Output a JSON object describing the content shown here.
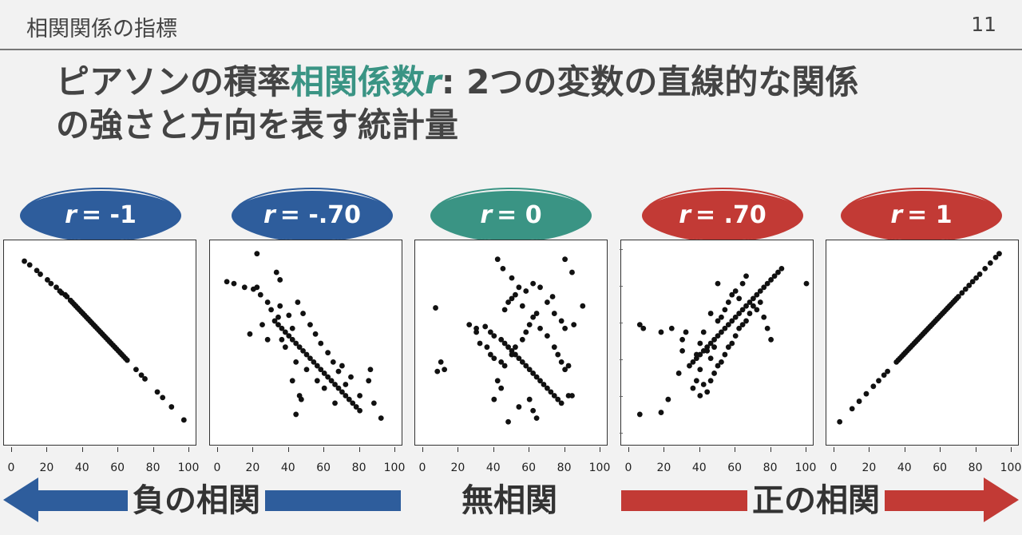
{
  "header": {
    "title": "相関関係の指標",
    "page_number": "11"
  },
  "headline": {
    "part1": "ピアソンの積率",
    "highlight": "相関係数",
    "variable": "r",
    "part2": ": 2つの変数の直線的な関係",
    "line2": "の強さと方向を表す統計量"
  },
  "colors": {
    "negative": "#2e5d9c",
    "zero": "#3a9484",
    "positive": "#c23a35",
    "text": "#444444"
  },
  "badges": [
    {
      "var": "r",
      "value": "= -1",
      "color": "#2e5d9c"
    },
    {
      "var": "r",
      "value": "= -.70",
      "color": "#2e5d9c"
    },
    {
      "var": "r",
      "value": "= 0",
      "color": "#3a9484"
    },
    {
      "var": "r",
      "value": "= .70",
      "color": "#c23a35"
    },
    {
      "var": "r",
      "value": "= 1",
      "color": "#c23a35"
    }
  ],
  "x_ticks": [
    "0",
    "20",
    "40",
    "60",
    "80",
    "100"
  ],
  "bottom": {
    "negative": "負の相関",
    "none": "無相関",
    "positive": "正の相関"
  },
  "chart_data": [
    {
      "type": "scatter",
      "r": -1,
      "xlim": [
        0,
        100
      ],
      "points": [
        [
          7,
          94
        ],
        [
          10,
          92
        ],
        [
          14,
          89
        ],
        [
          16,
          87
        ],
        [
          20,
          84
        ],
        [
          22,
          82
        ],
        [
          25,
          80
        ],
        [
          27,
          78
        ],
        [
          28,
          77
        ],
        [
          30,
          76
        ],
        [
          31,
          75
        ],
        [
          33,
          73
        ],
        [
          34,
          72
        ],
        [
          35,
          71
        ],
        [
          36,
          70
        ],
        [
          37,
          69
        ],
        [
          38,
          68
        ],
        [
          39,
          67
        ],
        [
          40,
          66
        ],
        [
          41,
          65
        ],
        [
          42,
          64
        ],
        [
          43,
          63
        ],
        [
          44,
          62
        ],
        [
          45,
          61
        ],
        [
          46,
          60
        ],
        [
          47,
          59
        ],
        [
          48,
          58
        ],
        [
          49,
          57
        ],
        [
          50,
          56
        ],
        [
          51,
          55
        ],
        [
          52,
          54
        ],
        [
          53,
          53
        ],
        [
          54,
          52
        ],
        [
          55,
          51
        ],
        [
          56,
          50
        ],
        [
          57,
          49
        ],
        [
          58,
          48
        ],
        [
          59,
          47
        ],
        [
          60,
          46
        ],
        [
          61,
          45
        ],
        [
          62,
          44
        ],
        [
          63,
          43
        ],
        [
          64,
          42
        ],
        [
          65,
          41
        ],
        [
          70,
          36
        ],
        [
          73,
          33
        ],
        [
          75,
          31
        ],
        [
          82,
          24
        ],
        [
          85,
          21
        ],
        [
          90,
          16
        ],
        [
          97,
          9
        ]
      ]
    },
    {
      "type": "scatter",
      "r": -0.7,
      "xlim": [
        0,
        100
      ],
      "points": [
        [
          22,
          98
        ],
        [
          5,
          83
        ],
        [
          9,
          82
        ],
        [
          15,
          80
        ],
        [
          20,
          79
        ],
        [
          22,
          80
        ],
        [
          24,
          76
        ],
        [
          28,
          72
        ],
        [
          33,
          88
        ],
        [
          35,
          84
        ],
        [
          30,
          68
        ],
        [
          32,
          62
        ],
        [
          34,
          60
        ],
        [
          36,
          58
        ],
        [
          38,
          56
        ],
        [
          40,
          54
        ],
        [
          42,
          52
        ],
        [
          44,
          50
        ],
        [
          46,
          48
        ],
        [
          48,
          46
        ],
        [
          50,
          44
        ],
        [
          52,
          42
        ],
        [
          54,
          40
        ],
        [
          56,
          38
        ],
        [
          58,
          36
        ],
        [
          60,
          34
        ],
        [
          62,
          32
        ],
        [
          64,
          30
        ],
        [
          66,
          28
        ],
        [
          68,
          26
        ],
        [
          70,
          24
        ],
        [
          72,
          22
        ],
        [
          74,
          20
        ],
        [
          76,
          18
        ],
        [
          78,
          16
        ],
        [
          80,
          14
        ],
        [
          85,
          30
        ],
        [
          88,
          18
        ],
        [
          92,
          10
        ],
        [
          18,
          55
        ],
        [
          25,
          60
        ],
        [
          28,
          52
        ],
        [
          35,
          70
        ],
        [
          40,
          65
        ],
        [
          45,
          72
        ],
        [
          48,
          66
        ],
        [
          52,
          60
        ],
        [
          55,
          55
        ],
        [
          58,
          50
        ],
        [
          62,
          45
        ],
        [
          65,
          40
        ],
        [
          68,
          35
        ],
        [
          70,
          38
        ],
        [
          75,
          32
        ],
        [
          72,
          28
        ],
        [
          44,
          40
        ],
        [
          50,
          36
        ],
        [
          56,
          30
        ],
        [
          60,
          26
        ],
        [
          42,
          30
        ],
        [
          46,
          22
        ],
        [
          47,
          20
        ],
        [
          44,
          12
        ],
        [
          66,
          18
        ],
        [
          80,
          22
        ],
        [
          86,
          36
        ],
        [
          38,
          48
        ],
        [
          42,
          58
        ],
        [
          36,
          52
        ],
        [
          34,
          64
        ]
      ]
    },
    {
      "type": "scatter",
      "r": 0,
      "xlim": [
        0,
        100
      ],
      "points": [
        [
          42,
          95
        ],
        [
          45,
          90
        ],
        [
          50,
          85
        ],
        [
          54,
          80
        ],
        [
          58,
          78
        ],
        [
          62,
          82
        ],
        [
          80,
          95
        ],
        [
          84,
          88
        ],
        [
          73,
          75
        ],
        [
          90,
          70
        ],
        [
          7,
          69
        ],
        [
          26,
          60
        ],
        [
          30,
          58
        ],
        [
          35,
          59
        ],
        [
          38,
          56
        ],
        [
          40,
          54
        ],
        [
          44,
          52
        ],
        [
          46,
          50
        ],
        [
          48,
          48
        ],
        [
          50,
          46
        ],
        [
          52,
          44
        ],
        [
          54,
          42
        ],
        [
          56,
          40
        ],
        [
          58,
          38
        ],
        [
          60,
          36
        ],
        [
          62,
          34
        ],
        [
          64,
          32
        ],
        [
          66,
          30
        ],
        [
          68,
          28
        ],
        [
          70,
          26
        ],
        [
          72,
          24
        ],
        [
          74,
          22
        ],
        [
          76,
          20
        ],
        [
          78,
          18
        ],
        [
          8,
          35
        ],
        [
          10,
          40
        ],
        [
          12,
          36
        ],
        [
          30,
          56
        ],
        [
          32,
          50
        ],
        [
          36,
          48
        ],
        [
          38,
          44
        ],
        [
          40,
          42
        ],
        [
          44,
          40
        ],
        [
          46,
          38
        ],
        [
          50,
          44
        ],
        [
          52,
          48
        ],
        [
          56,
          52
        ],
        [
          58,
          56
        ],
        [
          60,
          60
        ],
        [
          62,
          64
        ],
        [
          64,
          66
        ],
        [
          66,
          58
        ],
        [
          70,
          54
        ],
        [
          74,
          48
        ],
        [
          76,
          44
        ],
        [
          78,
          40
        ],
        [
          80,
          36
        ],
        [
          82,
          38
        ],
        [
          85,
          60
        ],
        [
          82,
          22
        ],
        [
          84,
          22
        ],
        [
          54,
          16
        ],
        [
          60,
          20
        ],
        [
          62,
          14
        ],
        [
          64,
          10
        ],
        [
          48,
          8
        ],
        [
          40,
          20
        ],
        [
          44,
          26
        ],
        [
          42,
          30
        ],
        [
          46,
          68
        ],
        [
          48,
          72
        ],
        [
          50,
          74
        ],
        [
          52,
          76
        ],
        [
          56,
          70
        ],
        [
          66,
          80
        ],
        [
          70,
          72
        ],
        [
          74,
          66
        ],
        [
          78,
          62
        ],
        [
          80,
          58
        ]
      ]
    },
    {
      "type": "scatter",
      "r": 0.7,
      "xlim": [
        0,
        100
      ],
      "points": [
        [
          6,
          12
        ],
        [
          18,
          13
        ],
        [
          22,
          20
        ],
        [
          28,
          34
        ],
        [
          30,
          52
        ],
        [
          32,
          56
        ],
        [
          36,
          40
        ],
        [
          38,
          42
        ],
        [
          40,
          44
        ],
        [
          42,
          46
        ],
        [
          44,
          48
        ],
        [
          46,
          50
        ],
        [
          48,
          52
        ],
        [
          50,
          54
        ],
        [
          52,
          56
        ],
        [
          54,
          58
        ],
        [
          56,
          60
        ],
        [
          58,
          62
        ],
        [
          60,
          64
        ],
        [
          62,
          66
        ],
        [
          64,
          68
        ],
        [
          66,
          70
        ],
        [
          68,
          72
        ],
        [
          70,
          74
        ],
        [
          72,
          76
        ],
        [
          74,
          78
        ],
        [
          76,
          80
        ],
        [
          78,
          82
        ],
        [
          80,
          84
        ],
        [
          82,
          86
        ],
        [
          84,
          88
        ],
        [
          86,
          90
        ],
        [
          100,
          82
        ],
        [
          6,
          60
        ],
        [
          8,
          58
        ],
        [
          18,
          56
        ],
        [
          24,
          58
        ],
        [
          36,
          26
        ],
        [
          38,
          30
        ],
        [
          40,
          22
        ],
        [
          42,
          28
        ],
        [
          44,
          24
        ],
        [
          46,
          30
        ],
        [
          48,
          34
        ],
        [
          50,
          38
        ],
        [
          52,
          40
        ],
        [
          54,
          44
        ],
        [
          56,
          48
        ],
        [
          58,
          50
        ],
        [
          60,
          54
        ],
        [
          62,
          58
        ],
        [
          64,
          60
        ],
        [
          66,
          62
        ],
        [
          68,
          66
        ],
        [
          70,
          70
        ],
        [
          72,
          68
        ],
        [
          74,
          72
        ],
        [
          76,
          64
        ],
        [
          78,
          58
        ],
        [
          80,
          52
        ],
        [
          38,
          44
        ],
        [
          40,
          36
        ],
        [
          44,
          46
        ],
        [
          46,
          42
        ],
        [
          48,
          48
        ],
        [
          50,
          62
        ],
        [
          52,
          64
        ],
        [
          54,
          68
        ],
        [
          56,
          72
        ],
        [
          58,
          76
        ],
        [
          60,
          78
        ],
        [
          62,
          74
        ],
        [
          64,
          82
        ],
        [
          66,
          86
        ],
        [
          50,
          82
        ],
        [
          46,
          66
        ],
        [
          42,
          56
        ],
        [
          40,
          50
        ],
        [
          34,
          38
        ],
        [
          30,
          46
        ]
      ]
    },
    {
      "type": "scatter",
      "r": 1,
      "xlim": [
        0,
        100
      ],
      "points": [
        [
          3,
          8
        ],
        [
          10,
          15
        ],
        [
          14,
          19
        ],
        [
          18,
          23
        ],
        [
          22,
          27
        ],
        [
          25,
          30
        ],
        [
          28,
          33
        ],
        [
          30,
          35
        ],
        [
          35,
          40
        ],
        [
          36,
          41
        ],
        [
          37,
          42
        ],
        [
          38,
          43
        ],
        [
          39,
          44
        ],
        [
          40,
          45
        ],
        [
          41,
          46
        ],
        [
          42,
          47
        ],
        [
          43,
          48
        ],
        [
          44,
          49
        ],
        [
          45,
          50
        ],
        [
          46,
          51
        ],
        [
          47,
          52
        ],
        [
          48,
          53
        ],
        [
          49,
          54
        ],
        [
          50,
          55
        ],
        [
          51,
          56
        ],
        [
          52,
          57
        ],
        [
          53,
          58
        ],
        [
          54,
          59
        ],
        [
          55,
          60
        ],
        [
          56,
          61
        ],
        [
          57,
          62
        ],
        [
          58,
          63
        ],
        [
          59,
          64
        ],
        [
          60,
          65
        ],
        [
          61,
          66
        ],
        [
          62,
          67
        ],
        [
          63,
          68
        ],
        [
          64,
          69
        ],
        [
          65,
          70
        ],
        [
          66,
          71
        ],
        [
          67,
          72
        ],
        [
          68,
          73
        ],
        [
          69,
          74
        ],
        [
          70,
          75
        ],
        [
          72,
          77
        ],
        [
          74,
          79
        ],
        [
          76,
          81
        ],
        [
          78,
          83
        ],
        [
          80,
          85
        ],
        [
          82,
          87
        ],
        [
          85,
          90
        ],
        [
          88,
          93
        ],
        [
          91,
          96
        ],
        [
          93,
          98
        ]
      ]
    }
  ]
}
